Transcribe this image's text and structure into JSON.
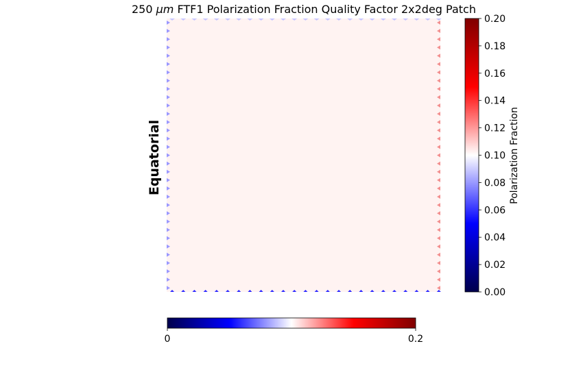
{
  "title": {
    "prefix": "250 ",
    "unit": "μm",
    "suffix": " FTF1 Polarization Fraction Quality Factor 2x2deg Patch"
  },
  "side_label": "Equatorial",
  "colors": {
    "map_fill": "#fff3f2",
    "edge_left": "#9a98ff",
    "edge_top": "#c7c6ff",
    "edge_bottom": "#2a26ff",
    "edge_right": "#f28f8f",
    "colormap": [
      "#00004c",
      "#0000ff",
      "#ffffff",
      "#ff0000",
      "#800000"
    ]
  },
  "chart_data": [
    {
      "type": "heatmap",
      "title": "250 μm FTF1 Polarization Fraction Quality Factor 2x2deg Patch",
      "ylabel": "Equatorial",
      "colormap": "seismic",
      "grid": false,
      "interior_value": 0.103,
      "edge_values": {
        "left": 0.085,
        "top": 0.093,
        "right": 0.125,
        "bottom": 0.06
      },
      "colorbar": {
        "orientation": "vertical",
        "label": "Polarization Fraction",
        "range": [
          0.0,
          0.2
        ],
        "ticks": [
          "0.00",
          "0.02",
          "0.04",
          "0.06",
          "0.08",
          "0.10",
          "0.12",
          "0.14",
          "0.16",
          "0.18",
          "0.20"
        ]
      }
    },
    {
      "type": "heatmap",
      "colorbar": {
        "orientation": "horizontal",
        "range": [
          0,
          0.2
        ],
        "ticks": [
          "0",
          "0.2"
        ]
      }
    }
  ]
}
